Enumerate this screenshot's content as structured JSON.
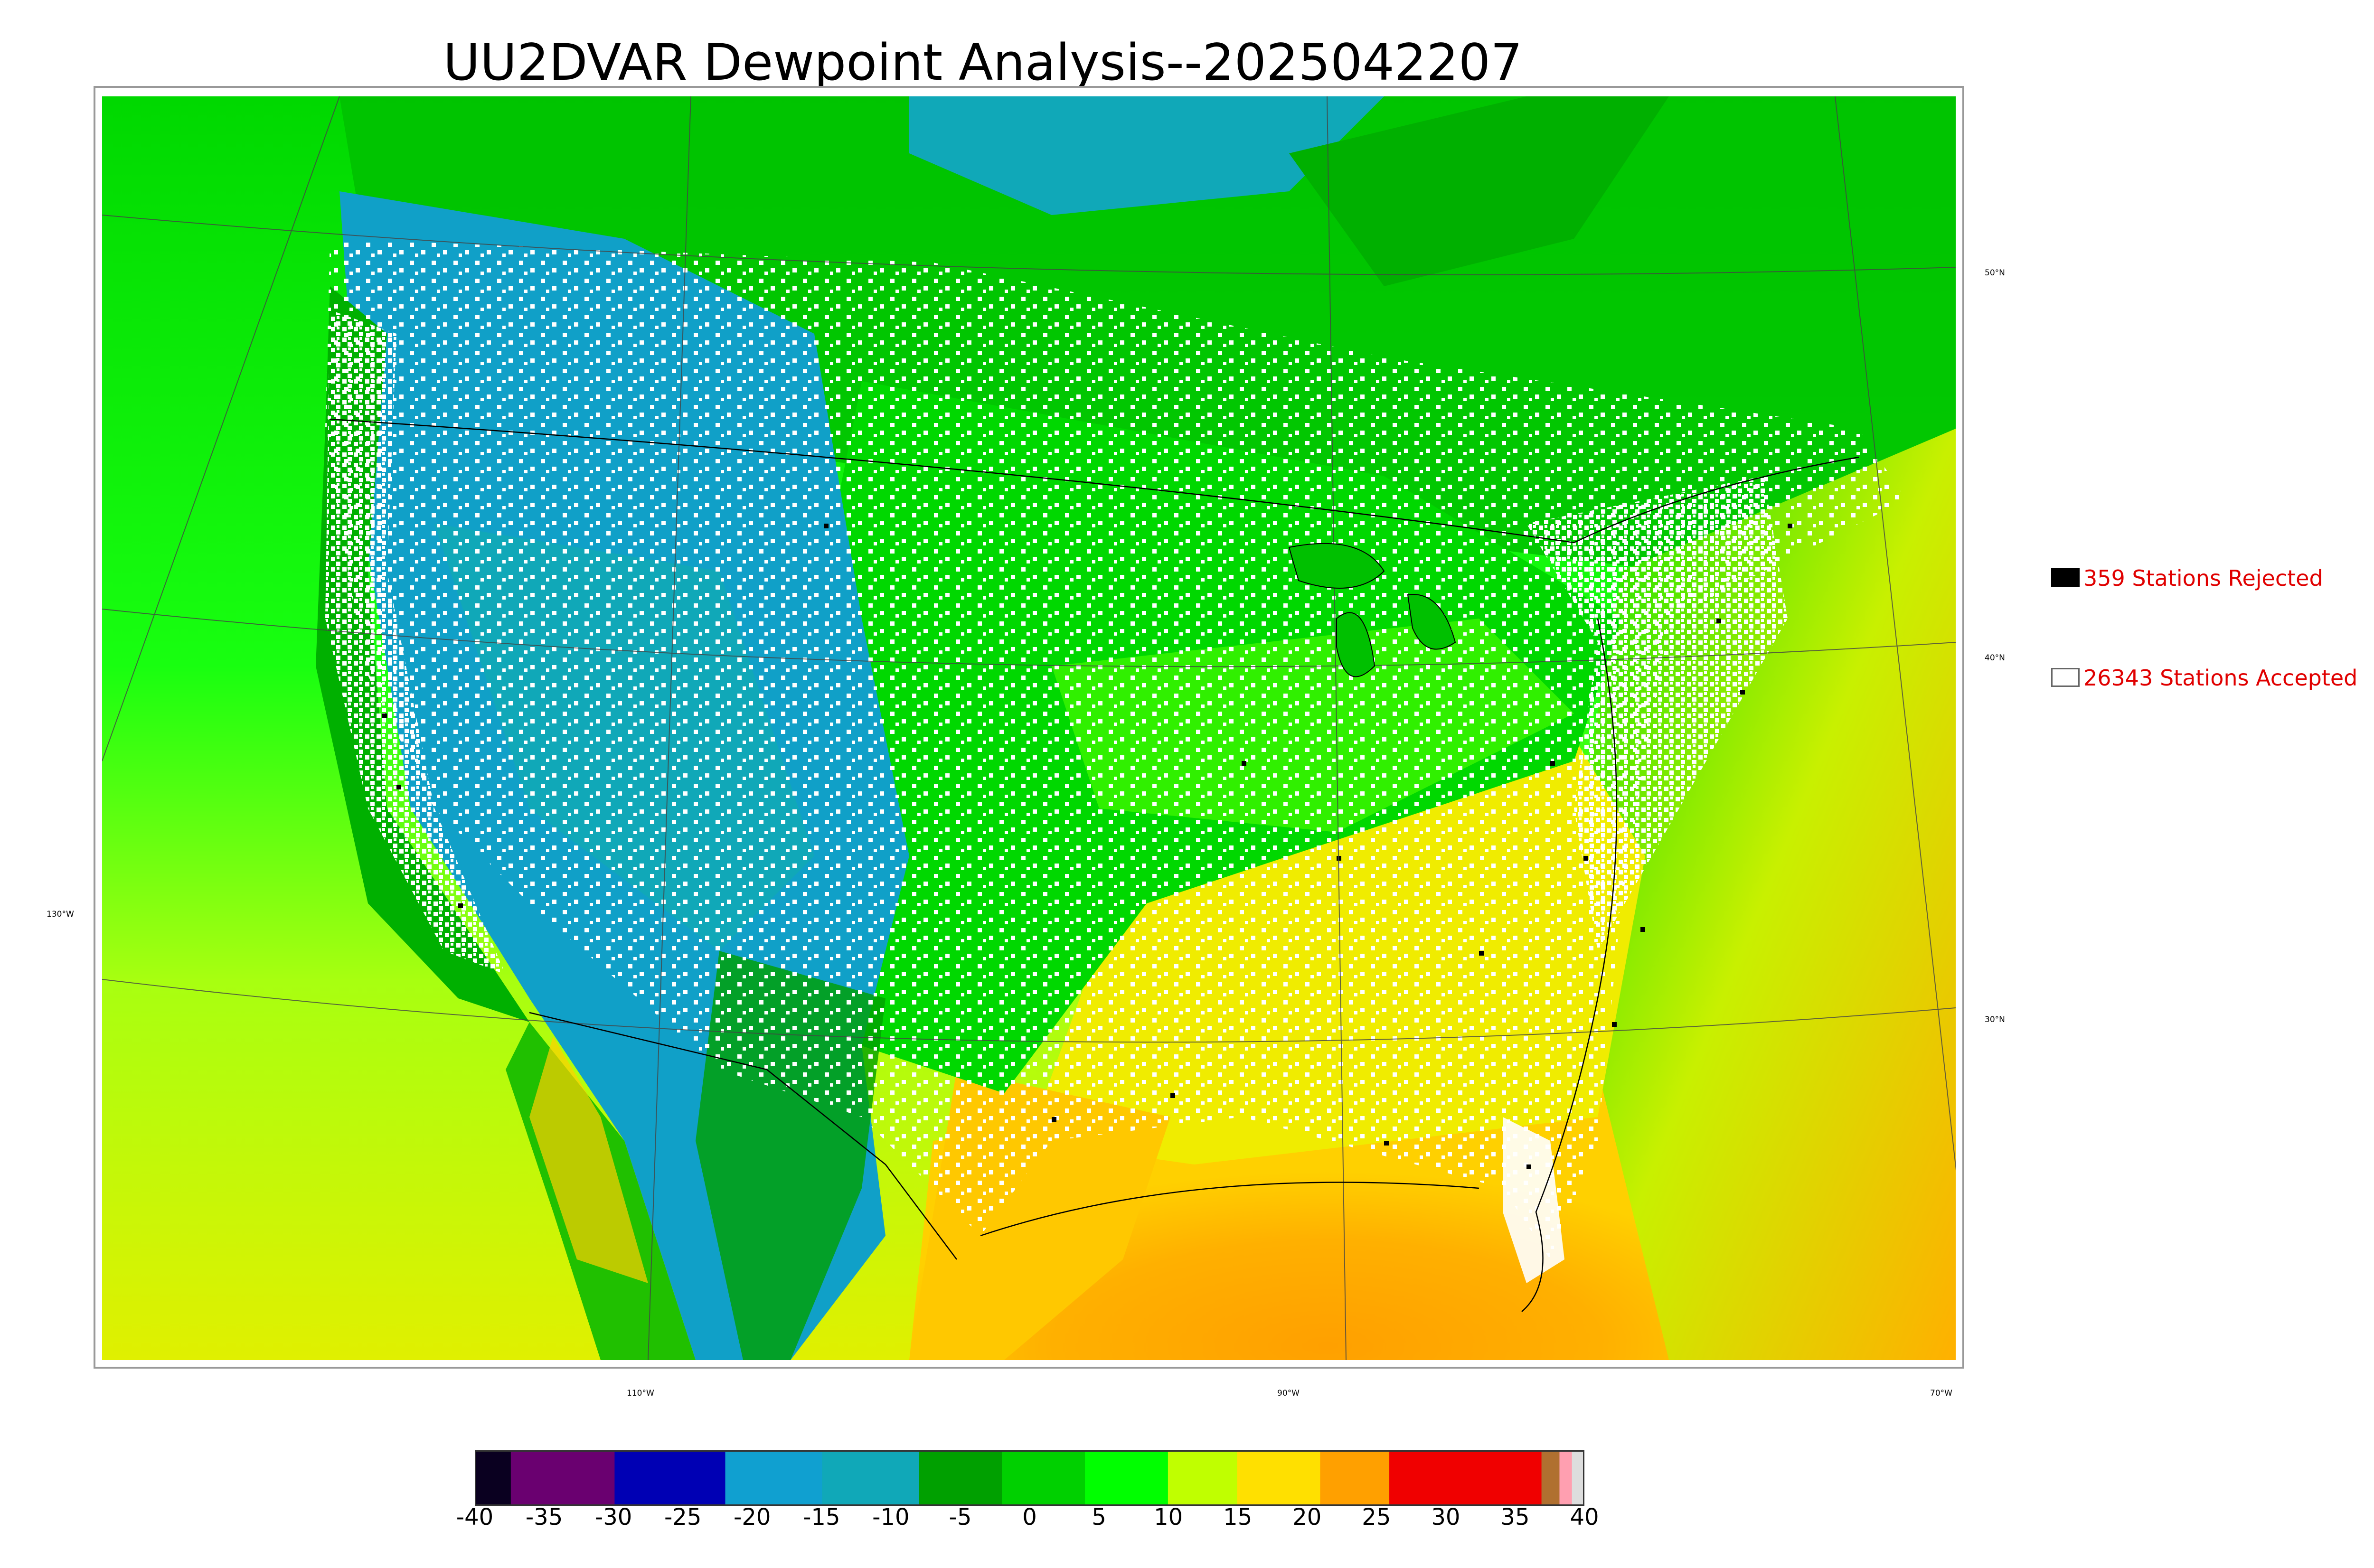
{
  "title": "UU2DVAR Dewpoint Analysis--2025042207",
  "map": {
    "latitude_labels": [
      "50°N",
      "40°N",
      "30°N"
    ],
    "longitude_labels": [
      "130°W",
      "110°W",
      "90°W",
      "70°W"
    ],
    "field": "dewpoint",
    "station_markers": {
      "accepted_color": "#ffffff",
      "rejected_color": "#000000"
    }
  },
  "legend": {
    "rejected_label": "359 Stations Rejected",
    "accepted_label": "26343 Stations Accepted",
    "label_color": "#e00000"
  },
  "colorbar": {
    "min": -40,
    "max": 40,
    "ticks": [
      "-40",
      "-35",
      "-30",
      "-25",
      "-20",
      "-15",
      "-10",
      "-5",
      "0",
      "5",
      "10",
      "15",
      "20",
      "25",
      "30",
      "35",
      "40"
    ],
    "bands": [
      {
        "from": -40,
        "to": -37.5,
        "color": "#0a0020"
      },
      {
        "from": -37.5,
        "to": -30,
        "color": "#6a0070"
      },
      {
        "from": -30,
        "to": -22,
        "color": "#0000b4"
      },
      {
        "from": -22,
        "to": -15,
        "color": "#10a0d0"
      },
      {
        "from": -15,
        "to": -8,
        "color": "#10a8b8"
      },
      {
        "from": -8,
        "to": -2,
        "color": "#00a000"
      },
      {
        "from": -2,
        "to": 4,
        "color": "#00d000"
      },
      {
        "from": 4,
        "to": 10,
        "color": "#00ff00"
      },
      {
        "from": 10,
        "to": 15,
        "color": "#c0ff00"
      },
      {
        "from": 15,
        "to": 21,
        "color": "#ffe000"
      },
      {
        "from": 21,
        "to": 26,
        "color": "#ffa000"
      },
      {
        "from": 26,
        "to": 37,
        "color": "#f00000"
      },
      {
        "from": 37,
        "to": 38.3,
        "color": "#b07030"
      },
      {
        "from": 38.3,
        "to": 39.2,
        "color": "#ff9fb0"
      },
      {
        "from": 39.2,
        "to": 40,
        "color": "#dddddd"
      }
    ]
  }
}
